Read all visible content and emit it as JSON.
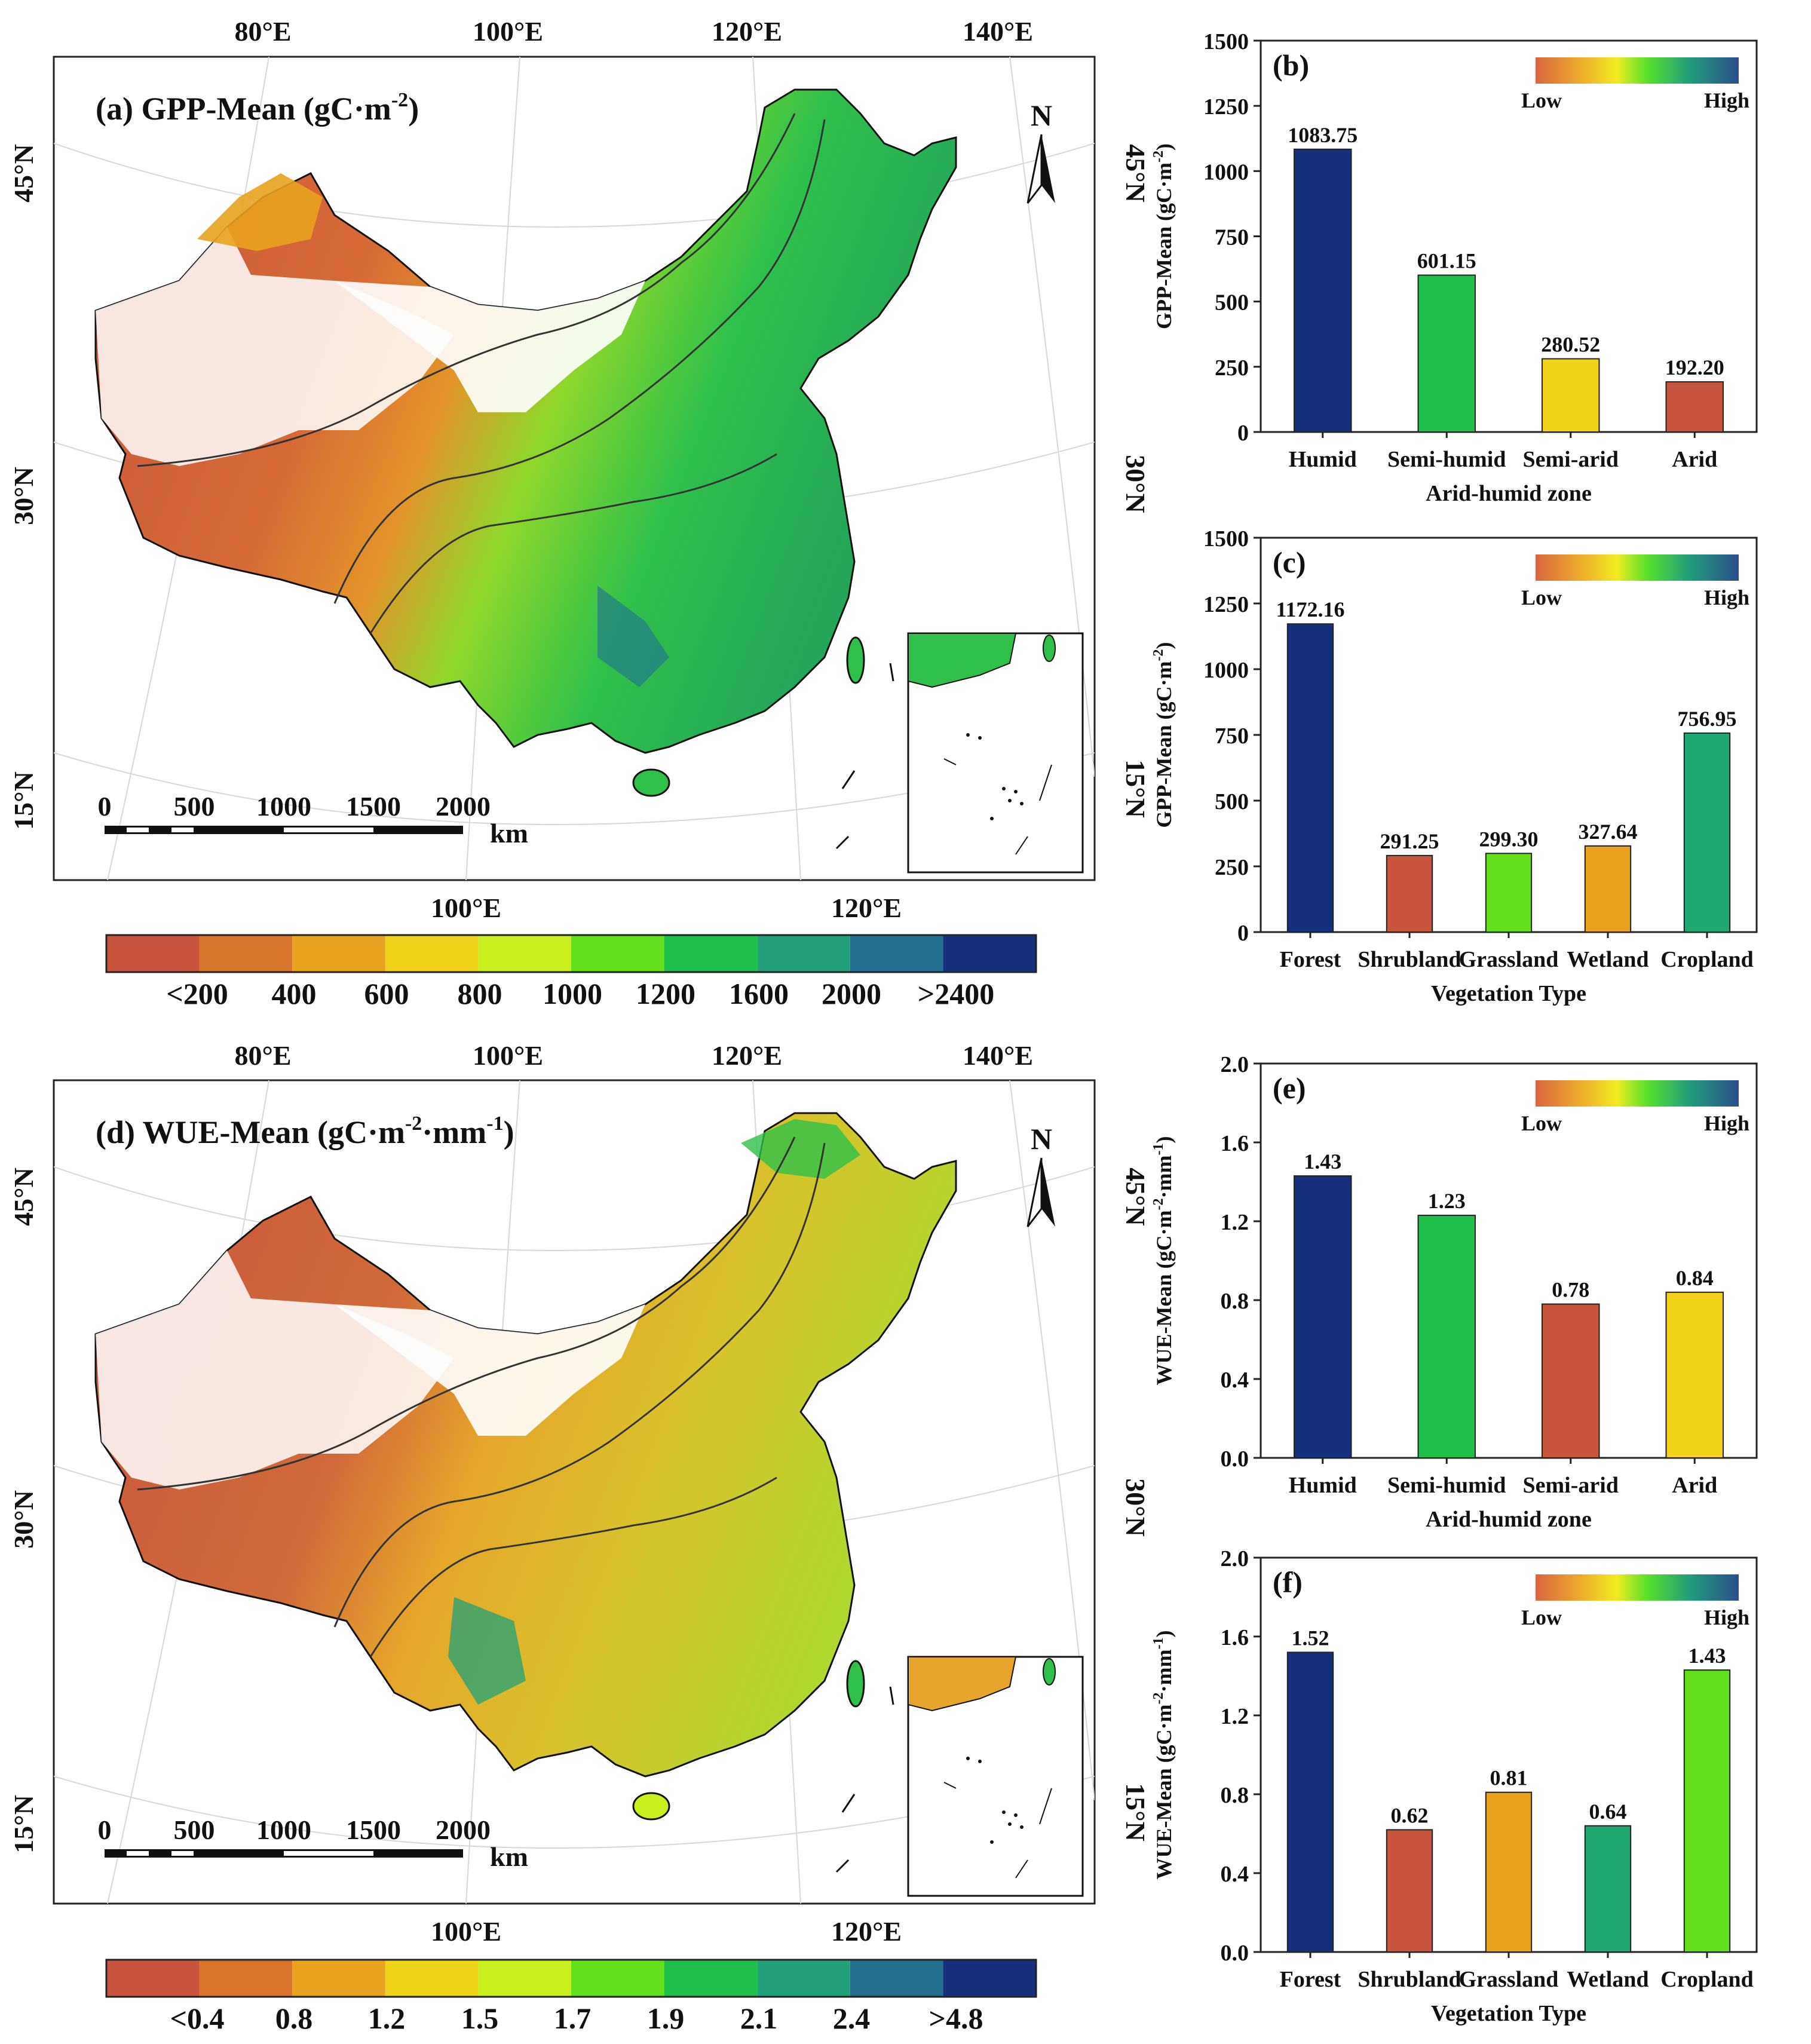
{
  "colors": {
    "scale10": [
      "#c8553d",
      "#d9742c",
      "#e8a21e",
      "#f0d21a",
      "#c9f01e",
      "#62e01c",
      "#1fc04a",
      "#22a07a",
      "#226f92",
      "#17307e"
    ],
    "bar_outline": "#222222",
    "boundary": "#333333",
    "land_void": "#ffffff"
  },
  "maps": [
    {
      "key": "gpp",
      "title": "(a) GPP-Mean (gC·m",
      "title_sup": "-2",
      "title_end": ")",
      "legend_labels": [
        "<200",
        "400",
        "600",
        "800",
        "1000",
        "1200",
        "1600",
        "2000",
        ">2400"
      ]
    },
    {
      "key": "wue",
      "title": "(d) WUE-Mean (gC·m",
      "title_sup": "-2",
      "title_mid": "·mm",
      "title_sup2": "-1",
      "title_end": ")",
      "legend_labels": [
        "<0.4",
        "0.8",
        "1.2",
        "1.5",
        "1.7",
        "1.9",
        "2.1",
        "2.4",
        ">4.8"
      ]
    }
  ],
  "map_common": {
    "top_lon_labels": [
      "80°E",
      "100°E",
      "120°E",
      "140°E"
    ],
    "bottom_lon_labels": [
      "100°E",
      "120°E"
    ],
    "left_lat_labels": [
      "45°N",
      "30°N",
      "15°N"
    ],
    "right_lat_labels": [
      "45°N",
      "30°N",
      "15°N"
    ],
    "north_label": "N",
    "scale_ticks": [
      "0",
      "500",
      "1000",
      "1500",
      "2000"
    ],
    "scale_unit": "km"
  },
  "chart_data": [
    {
      "id": "b",
      "panel": "(b)",
      "type": "bar",
      "categories": [
        "Humid",
        "Semi-humid",
        "Semi-arid",
        "Arid"
      ],
      "values": [
        1083.75,
        601.15,
        280.52,
        192.2
      ],
      "labels": [
        "1083.75",
        "601.15",
        "280.52",
        "192.20"
      ],
      "colors": [
        "#17307e",
        "#1fc04a",
        "#f0d21a",
        "#c8553d"
      ],
      "xlabel": "Arid-humid zone",
      "ylabel": "GPP-Mean (gC·m",
      "ylabel_sup": "-2",
      "ylabel_end": ")",
      "ylim": [
        0,
        1500
      ],
      "yticks": [
        "0",
        "250",
        "500",
        "750",
        "1000",
        "1250",
        "1500"
      ],
      "legend_low": "Low",
      "legend_high": "High"
    },
    {
      "id": "c",
      "panel": "(c)",
      "type": "bar",
      "categories": [
        "Forest",
        "Shrubland",
        "Grassland",
        "Wetland",
        "Cropland"
      ],
      "values": [
        1172.16,
        291.25,
        299.3,
        327.64,
        756.95
      ],
      "labels": [
        "1172.16",
        "291.25",
        "299.30",
        "327.64",
        "756.95"
      ],
      "colors": [
        "#17307e",
        "#c8553d",
        "#62e01c",
        "#e8a21e",
        "#1fa872"
      ],
      "xlabel": "Vegetation Type",
      "ylabel": "GPP-Mean (gC·m",
      "ylabel_sup": "-2",
      "ylabel_end": ")",
      "ylim": [
        0,
        1500
      ],
      "yticks": [
        "0",
        "250",
        "500",
        "750",
        "1000",
        "1250",
        "1500"
      ],
      "legend_low": "Low",
      "legend_high": "High"
    },
    {
      "id": "e",
      "panel": "(e)",
      "type": "bar",
      "categories": [
        "Humid",
        "Semi-humid",
        "Semi-arid",
        "Arid"
      ],
      "values": [
        1.43,
        1.23,
        0.78,
        0.84
      ],
      "labels": [
        "1.43",
        "1.23",
        "0.78",
        "0.84"
      ],
      "colors": [
        "#17307e",
        "#1fc04a",
        "#c8553d",
        "#f0d21a"
      ],
      "xlabel": "Arid-humid zone",
      "ylabel": "WUE-Mean (gC·m",
      "ylabel_sup": "-2",
      "ylabel_mid": "·mm",
      "ylabel_sup2": "-1",
      "ylabel_end": ")",
      "ylim": [
        0,
        2.0
      ],
      "yticks": [
        "0.0",
        "0.4",
        "0.8",
        "1.2",
        "1.6",
        "2.0"
      ],
      "legend_low": "Low",
      "legend_high": "High"
    },
    {
      "id": "f",
      "panel": "(f)",
      "type": "bar",
      "categories": [
        "Forest",
        "Shrubland",
        "Grassland",
        "Wetland",
        "Cropland"
      ],
      "values": [
        1.52,
        0.62,
        0.81,
        0.64,
        1.43
      ],
      "labels": [
        "1.52",
        "0.62",
        "0.81",
        "0.64",
        "1.43"
      ],
      "colors": [
        "#17307e",
        "#c8553d",
        "#e8a21e",
        "#1fa872",
        "#62e01c"
      ],
      "xlabel": "Vegetation Type",
      "ylabel": "WUE-Mean (gC·m",
      "ylabel_sup": "-2",
      "ylabel_mid": "·mm",
      "ylabel_sup2": "-1",
      "ylabel_end": ")",
      "ylim": [
        0,
        2.0
      ],
      "yticks": [
        "0.0",
        "0.4",
        "0.8",
        "1.2",
        "1.6",
        "2.0"
      ],
      "legend_low": "Low",
      "legend_high": "High"
    }
  ]
}
